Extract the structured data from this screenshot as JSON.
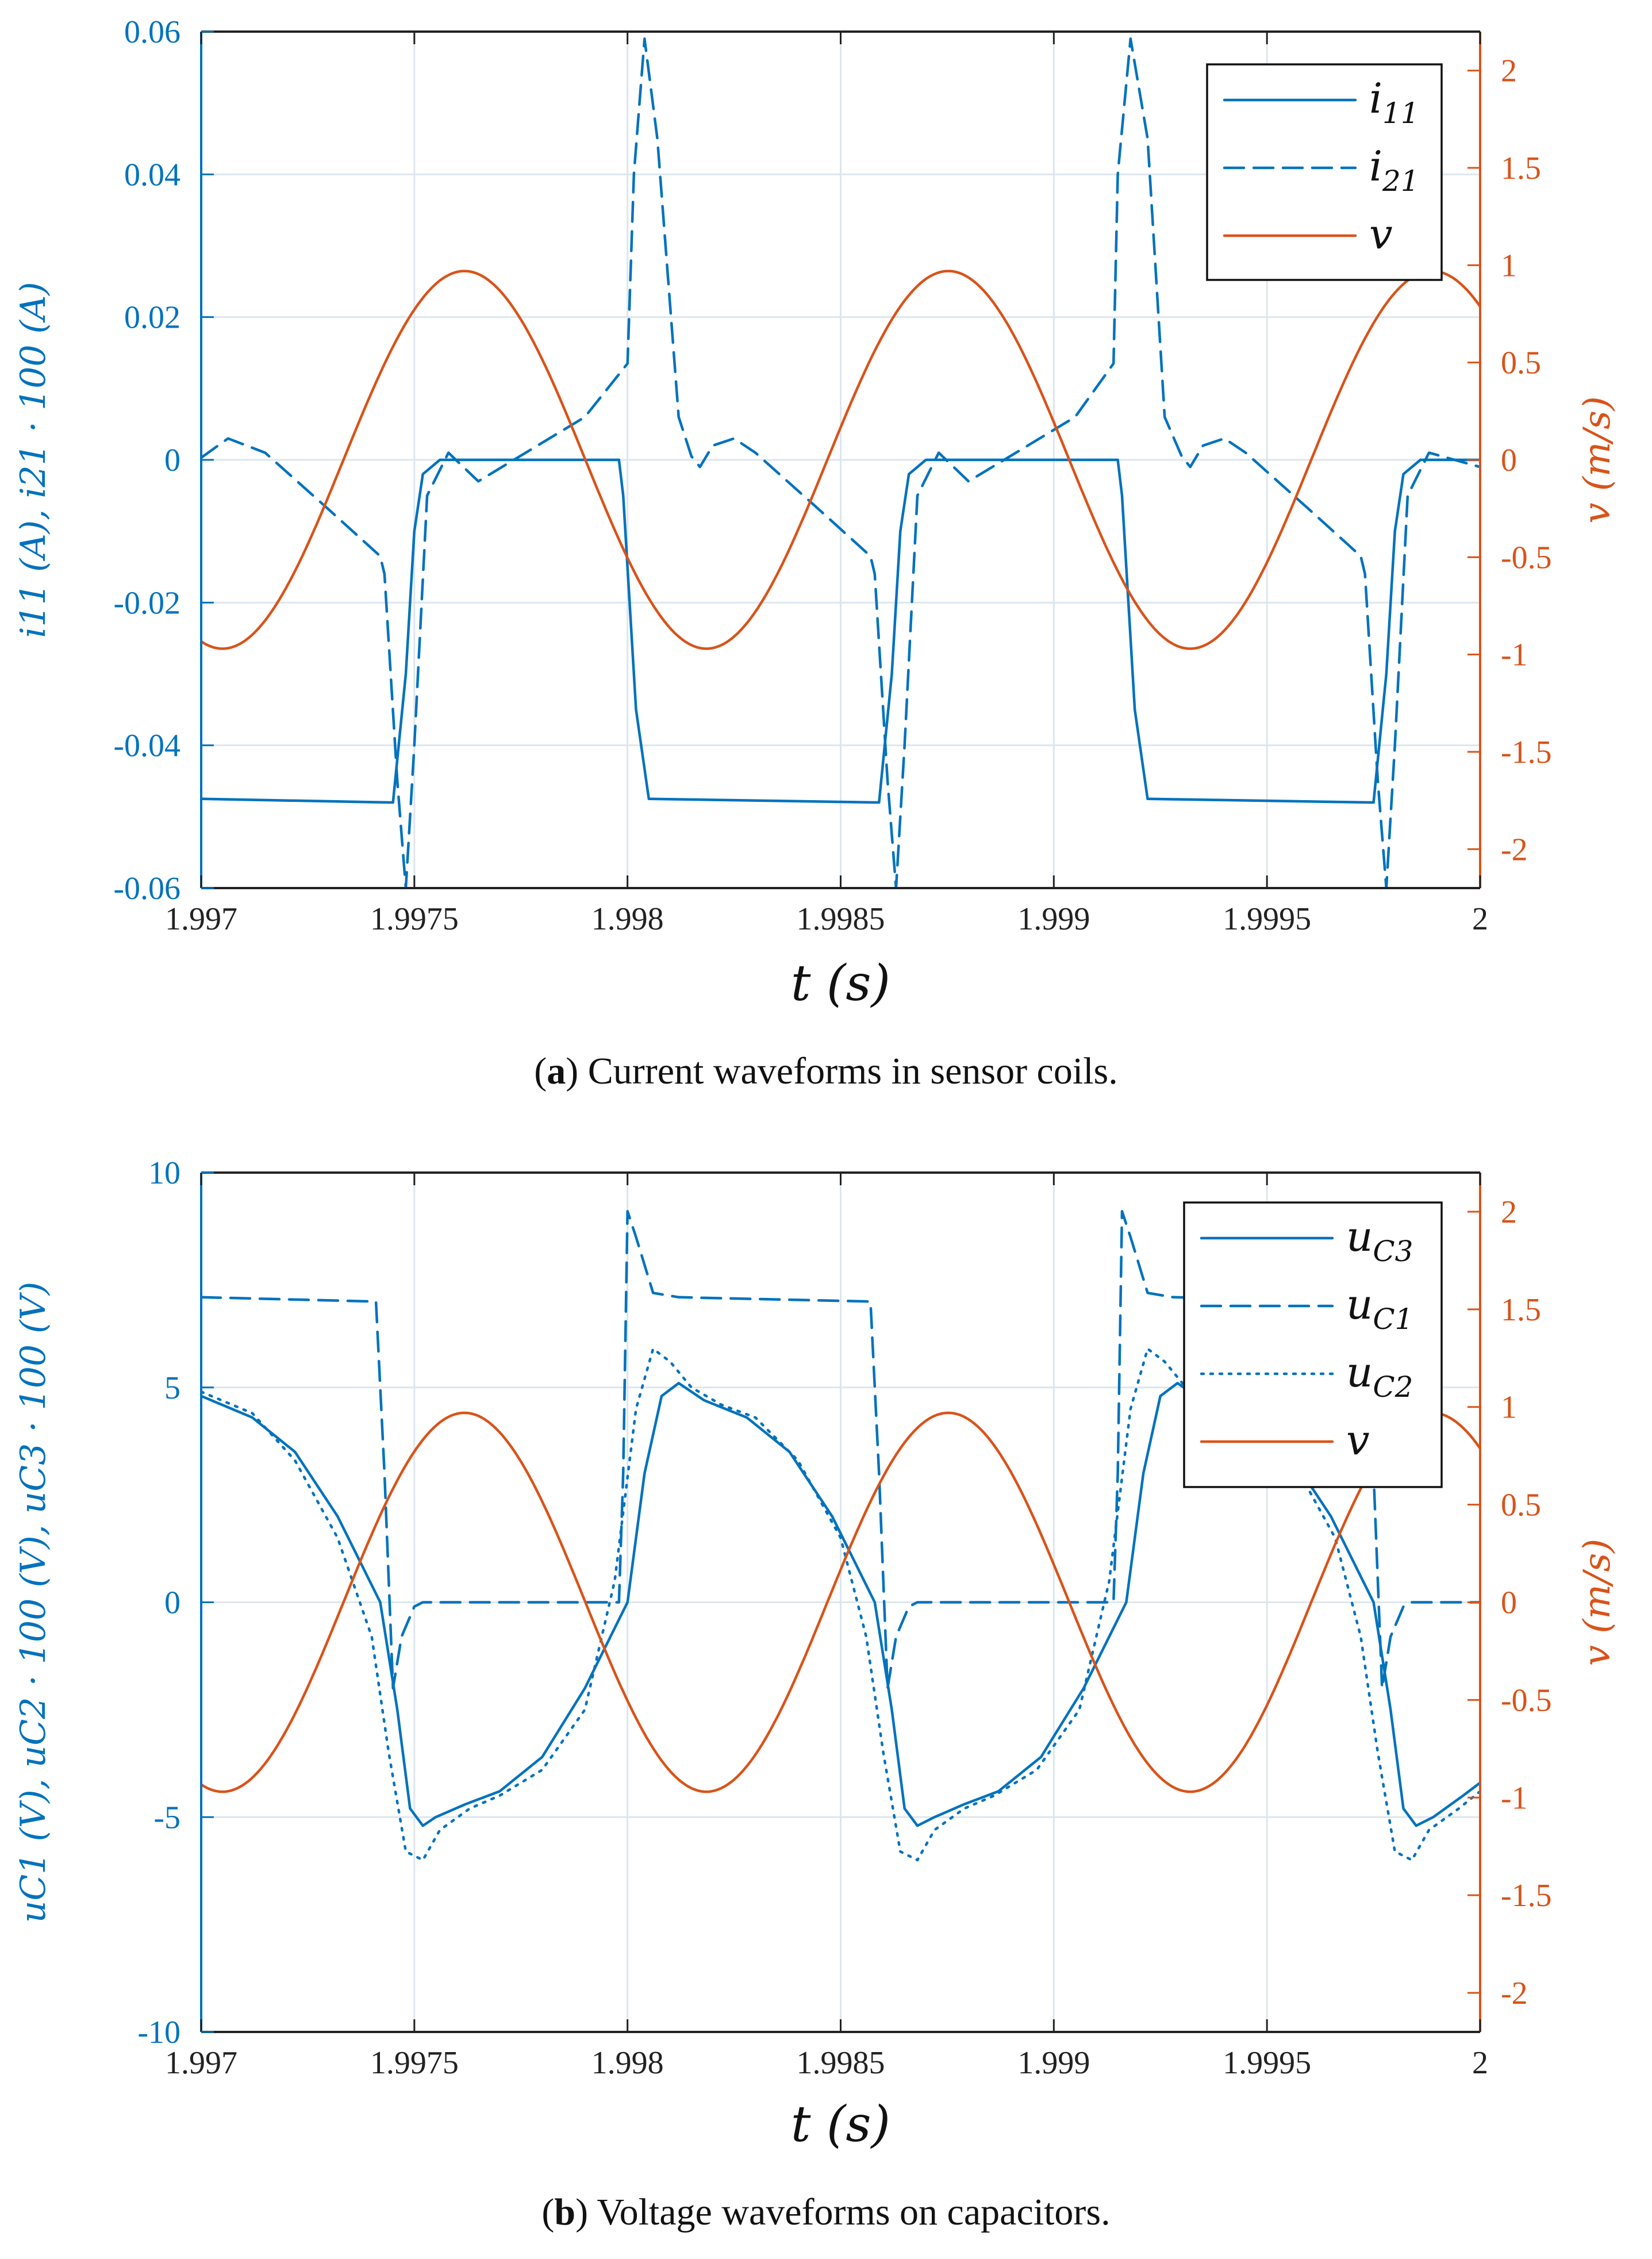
{
  "colors": {
    "left": "#0072BD",
    "right": "#D95319",
    "grid": "#dde6ee",
    "frame": "#222222"
  },
  "captions": [
    {
      "prefix": "(",
      "bold": "a",
      "rest": ") Current waveforms in sensor coils."
    },
    {
      "prefix": "(",
      "bold": "b",
      "rest": ") Voltage waveforms on capacitors."
    }
  ],
  "chart_data": [
    {
      "type": "line",
      "title": "",
      "xlabel": "t (s)",
      "ylabel_left": "i11 (A), i21 · 100 (A)",
      "ylabel_right": "v (m/s)",
      "xlim": [
        1.997,
        2.0
      ],
      "ylim_left": [
        -0.06,
        0.06
      ],
      "ylim_right": [
        -2.2,
        2.2
      ],
      "grid": true,
      "legend_placement": "top-right",
      "x_ticks": [
        {
          "v": 1.997,
          "label": "1.997"
        },
        {
          "v": 1.9975,
          "label": "1.9975"
        },
        {
          "v": 1.998,
          "label": "1.998"
        },
        {
          "v": 1.9985,
          "label": "1.9985"
        },
        {
          "v": 1.999,
          "label": "1.999"
        },
        {
          "v": 1.9995,
          "label": "1.9995"
        },
        {
          "v": 2.0,
          "label": "2"
        }
      ],
      "y_ticks_left": [
        {
          "v": -0.06,
          "label": "-0.06"
        },
        {
          "v": -0.04,
          "label": "-0.04"
        },
        {
          "v": -0.02,
          "label": "-0.02"
        },
        {
          "v": 0,
          "label": "0"
        },
        {
          "v": 0.02,
          "label": "0.02"
        },
        {
          "v": 0.04,
          "label": "0.04"
        },
        {
          "v": 0.06,
          "label": "0.06"
        }
      ],
      "y_ticks_right": [
        {
          "v": -2,
          "label": "-2"
        },
        {
          "v": -1.5,
          "label": "-1.5"
        },
        {
          "v": -1,
          "label": "-1"
        },
        {
          "v": -0.5,
          "label": "-0.5"
        },
        {
          "v": 0,
          "label": "0"
        },
        {
          "v": 0.5,
          "label": "0.5"
        },
        {
          "v": 1,
          "label": "1"
        },
        {
          "v": 1.5,
          "label": "1.5"
        },
        {
          "v": 2,
          "label": "2"
        }
      ],
      "series": [
        {
          "name": "i11",
          "name_main": "i",
          "name_sub": "11",
          "axis": "left",
          "color": "#0072BD",
          "dash": "solid",
          "x": [
            1.997,
            1.99744,
            1.99745,
            1.99748,
            1.9975,
            1.99752,
            1.99756,
            1.99798,
            1.99799,
            1.99802,
            1.99805,
            1.99858,
            1.99859,
            1.99862,
            1.99864,
            1.99866,
            1.9987,
            1.99915,
            1.99916,
            1.99919,
            1.99922,
            1.99974,
            1.99975,
            1.99978,
            1.9998,
            1.99982,
            1.99986,
            2.0
          ],
          "y": [
            -0.0475,
            -0.048,
            -0.048,
            -0.03,
            -0.01,
            -0.002,
            0,
            0,
            -0.005,
            -0.035,
            -0.0475,
            -0.048,
            -0.048,
            -0.03,
            -0.01,
            -0.002,
            0,
            0,
            -0.005,
            -0.035,
            -0.0475,
            -0.048,
            -0.048,
            -0.03,
            -0.01,
            -0.002,
            0,
            0
          ]
        },
        {
          "name": "i21",
          "name_main": "i",
          "name_sub": "21",
          "axis": "left",
          "color": "#0072BD",
          "dash": "dashed",
          "x": [
            1.997,
            1.997063,
            1.99715,
            1.9973,
            1.99742,
            1.99743,
            1.99746,
            1.99748,
            1.9975,
            1.99753,
            1.99758,
            1.99765,
            1.9979,
            1.998,
            1.998015,
            1.99804,
            1.99807,
            1.99812,
            1.99815,
            1.99817,
            1.9982,
            1.99825,
            1.9983,
            1.99845,
            1.99857,
            1.99858,
            1.99861,
            1.99863,
            1.99865,
            1.99868,
            1.99873,
            1.9988,
            1.99905,
            1.99914,
            1.99915,
            1.99918,
            1.99922,
            1.99926,
            1.9993,
            1.99932,
            1.99935,
            1.9994,
            1.99945,
            1.9996,
            1.99972,
            1.99973,
            1.99976,
            1.99978,
            1.9998,
            1.99983,
            1.99988,
            2.0
          ],
          "y": [
            0.0003,
            0.003,
            0.001,
            -0.007,
            -0.0135,
            -0.016,
            -0.045,
            -0.06,
            -0.04,
            -0.005,
            0.001,
            -0.003,
            0.006,
            0.0135,
            0.04,
            0.059,
            0.045,
            0.006,
            0.0005,
            -0.001,
            0.002,
            0.003,
            0.001,
            -0.007,
            -0.0135,
            -0.016,
            -0.045,
            -0.06,
            -0.04,
            -0.005,
            0.001,
            -0.003,
            0.006,
            0.0135,
            0.04,
            0.059,
            0.045,
            0.006,
            0.0005,
            -0.001,
            0.002,
            0.003,
            0.001,
            -0.007,
            -0.0135,
            -0.016,
            -0.045,
            -0.06,
            -0.04,
            -0.005,
            0.001,
            -0.001
          ]
        },
        {
          "name": "v",
          "name_main": "v",
          "name_sub": "",
          "axis": "right",
          "color": "#D95319",
          "dash": "solid",
          "fn": "sine",
          "amplitude": 0.97,
          "period": 0.001135,
          "phase_t0": 1.99705,
          "x_sample": [
            1.997,
            1.99705,
            1.99762,
            1.99819,
            1.99875,
            1.99932,
            1.99989,
            2.0
          ],
          "y_sample": [
            -0.97,
            -0.97,
            0.97,
            -0.97,
            0.97,
            -0.97,
            0.97,
            0.82
          ]
        }
      ]
    },
    {
      "type": "line",
      "title": "",
      "xlabel": "t (s)",
      "ylabel_left": "uC1 (V), uC2 · 100 (V), uC3 · 100 (V)",
      "ylabel_right": "v (m/s)",
      "xlim": [
        1.997,
        2.0
      ],
      "ylim_left": [
        -10,
        10
      ],
      "ylim_right": [
        -2.2,
        2.2
      ],
      "grid": true,
      "legend_placement": "top-right",
      "x_ticks": [
        {
          "v": 1.997,
          "label": "1.997"
        },
        {
          "v": 1.9975,
          "label": "1.9975"
        },
        {
          "v": 1.998,
          "label": "1.998"
        },
        {
          "v": 1.9985,
          "label": "1.9985"
        },
        {
          "v": 1.999,
          "label": "1.999"
        },
        {
          "v": 1.9995,
          "label": "1.9995"
        },
        {
          "v": 2.0,
          "label": "2"
        }
      ],
      "y_ticks_left": [
        {
          "v": -10,
          "label": "-10"
        },
        {
          "v": -5,
          "label": "-5"
        },
        {
          "v": 0,
          "label": "0"
        },
        {
          "v": 5,
          "label": "5"
        },
        {
          "v": 10,
          "label": "10"
        }
      ],
      "y_ticks_right": [
        {
          "v": -2,
          "label": "-2"
        },
        {
          "v": -1.5,
          "label": "-1.5"
        },
        {
          "v": -1,
          "label": "-1"
        },
        {
          "v": -0.5,
          "label": "-0.5"
        },
        {
          "v": 0,
          "label": "0"
        },
        {
          "v": 0.5,
          "label": "0.5"
        },
        {
          "v": 1,
          "label": "1"
        },
        {
          "v": 1.5,
          "label": "1.5"
        },
        {
          "v": 2,
          "label": "2"
        }
      ],
      "series": [
        {
          "name": "uC3",
          "name_main": "u",
          "name_sub": "C3",
          "axis": "left",
          "color": "#0072BD",
          "dash": "solid",
          "x": [
            1.997,
            1.99712,
            1.99722,
            1.99732,
            1.99742,
            1.99746,
            1.99749,
            1.99752,
            1.99755,
            1.99762,
            1.9977,
            1.9978,
            1.9979,
            1.998,
            1.99804,
            1.99808,
            1.99812,
            1.99818,
            1.99828,
            1.99838,
            1.99848,
            1.99858,
            1.99862,
            1.99865,
            1.99868,
            1.99872,
            1.99879,
            1.99887,
            1.99897,
            1.99907,
            1.99917,
            1.99921,
            1.99925,
            1.99929,
            1.99935,
            1.99945,
            1.99955,
            1.99965,
            1.99975,
            1.99979,
            1.99982,
            1.99985,
            1.99989,
            1.99996,
            2.0
          ],
          "y": [
            4.8,
            4.3,
            3.5,
            2.0,
            0,
            -2.5,
            -4.8,
            -5.2,
            -5.0,
            -4.7,
            -4.4,
            -3.6,
            -2.0,
            0,
            3.0,
            4.8,
            5.1,
            4.7,
            4.3,
            3.5,
            2.0,
            0,
            -2.5,
            -4.8,
            -5.2,
            -5.0,
            -4.7,
            -4.4,
            -3.6,
            -2.0,
            0,
            3.0,
            4.8,
            5.1,
            4.7,
            4.3,
            3.5,
            2.0,
            0,
            -2.5,
            -4.8,
            -5.2,
            -5.0,
            -4.5,
            -4.2
          ]
        },
        {
          "name": "uC1",
          "name_main": "u",
          "name_sub": "C1",
          "axis": "left",
          "color": "#0072BD",
          "dash": "dashed",
          "x": [
            1.997,
            1.99741,
            1.99743,
            1.99745,
            1.99747,
            1.9975,
            1.99752,
            1.99798,
            1.99799,
            1.998,
            1.99802,
            1.99806,
            1.99812,
            1.99857,
            1.99859,
            1.99861,
            1.99863,
            1.99866,
            1.99868,
            1.99914,
            1.99915,
            1.99916,
            1.99918,
            1.99922,
            1.99928,
            1.99973,
            1.99975,
            1.99977,
            1.99979,
            1.99982,
            1.99984,
            2.0
          ],
          "y": [
            7.1,
            7.0,
            3.0,
            -2.0,
            -0.8,
            -0.1,
            0,
            0,
            3.0,
            9.1,
            8.5,
            7.2,
            7.1,
            7.0,
            3.0,
            -2.0,
            -0.8,
            -0.1,
            0,
            0,
            3.0,
            9.1,
            8.5,
            7.2,
            7.1,
            7.0,
            3.0,
            -2.0,
            -0.8,
            -0.1,
            0,
            0
          ]
        },
        {
          "name": "uC2",
          "name_main": "u",
          "name_sub": "C2",
          "axis": "left",
          "color": "#0072BD",
          "dash": "dotted",
          "x": [
            1.997,
            1.99712,
            1.99722,
            1.99732,
            1.9974,
            1.99744,
            1.99748,
            1.99752,
            1.99756,
            1.99763,
            1.9977,
            1.9978,
            1.9979,
            1.99797,
            1.99802,
            1.99806,
            1.9981,
            1.99815,
            1.99822,
            1.9983,
            1.9984,
            1.9985,
            1.99856,
            1.9986,
            1.99864,
            1.99868,
            1.99872,
            1.99879,
            1.99886,
            1.99896,
            1.99906,
            1.99913,
            1.99918,
            1.99922,
            1.99926,
            1.99931,
            1.99938,
            1.99946,
            1.99956,
            1.99966,
            1.99972,
            1.99976,
            1.9998,
            1.99984,
            1.99988,
            1.99995,
            2.0
          ],
          "y": [
            4.9,
            4.4,
            3.3,
            1.5,
            -0.8,
            -3.5,
            -5.8,
            -6.0,
            -5.3,
            -4.8,
            -4.5,
            -3.9,
            -2.5,
            0.5,
            4.5,
            5.9,
            5.6,
            5.0,
            4.6,
            4.3,
            3.3,
            1.5,
            -0.8,
            -3.5,
            -5.8,
            -6.0,
            -5.3,
            -4.8,
            -4.5,
            -3.9,
            -2.5,
            0.5,
            4.5,
            5.9,
            5.6,
            5.0,
            4.6,
            4.3,
            3.3,
            1.5,
            -0.8,
            -3.5,
            -5.8,
            -6.0,
            -5.3,
            -4.8,
            -4.4
          ]
        },
        {
          "name": "v",
          "name_main": "v",
          "name_sub": "",
          "axis": "right",
          "color": "#D95319",
          "dash": "solid",
          "fn": "sine",
          "amplitude": 0.97,
          "period": 0.001135,
          "phase_t0": 1.99705,
          "x_sample": [
            1.997,
            1.99705,
            1.99762,
            1.99819,
            1.99875,
            1.99932,
            1.99989,
            2.0
          ],
          "y_sample": [
            -0.97,
            -0.97,
            0.97,
            -0.97,
            0.97,
            -0.97,
            0.97,
            0.82
          ]
        }
      ]
    }
  ]
}
